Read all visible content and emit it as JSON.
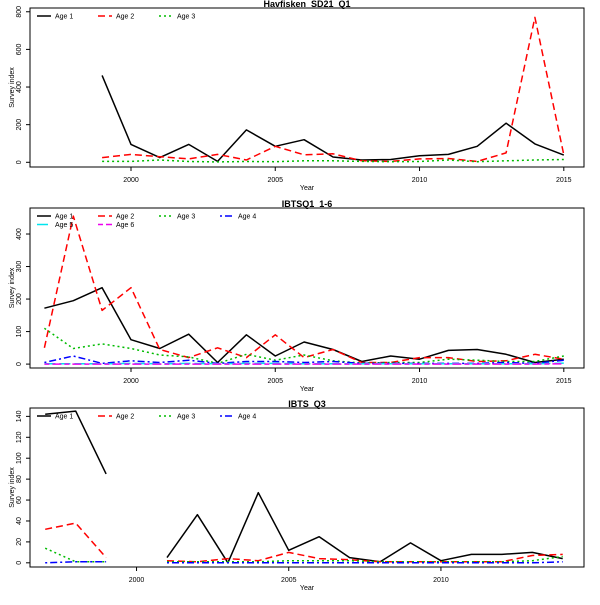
{
  "chart_data": [
    {
      "type": "line",
      "title": "Havfisken_SD21_Q1",
      "xlabel": "Year",
      "ylabel": "Survey index",
      "xlim": [
        1996.5,
        2015.7
      ],
      "ylim": [
        -25,
        820
      ],
      "xticks": [
        2000,
        2005,
        2010,
        2015
      ],
      "yticks": [
        0,
        200,
        400,
        600,
        800
      ],
      "legend": "top-left",
      "grid": false,
      "series": [
        {
          "name": "Age 1",
          "color": "#000000",
          "dash": "solid",
          "x": [
            1999,
            2000,
            2001,
            2002,
            2003,
            2004,
            2005,
            2006,
            2007,
            2008,
            2009,
            2010,
            2011,
            2012,
            2013,
            2014,
            2015
          ],
          "y": [
            462,
            95,
            25,
            95,
            5,
            172,
            85,
            120,
            28,
            12,
            15,
            35,
            42,
            85,
            208,
            98,
            38
          ]
        },
        {
          "name": "Age 2",
          "color": "#ff0000",
          "dash": "dashed",
          "x": [
            1999,
            2000,
            2001,
            2002,
            2003,
            2004,
            2005,
            2006,
            2007,
            2008,
            2009,
            2010,
            2011,
            2012,
            2013,
            2014,
            2015
          ],
          "y": [
            25,
            42,
            30,
            18,
            42,
            12,
            85,
            40,
            45,
            8,
            5,
            18,
            20,
            5,
            50,
            770,
            40
          ]
        },
        {
          "name": "Age 3",
          "color": "#00bb00",
          "dash": "dotted",
          "x": [
            1999,
            2000,
            2001,
            2002,
            2003,
            2004,
            2005,
            2006,
            2007,
            2008,
            2009,
            2010,
            2011,
            2012,
            2013,
            2014,
            2015
          ],
          "y": [
            5,
            5,
            12,
            4,
            2,
            4,
            3,
            8,
            8,
            5,
            3,
            4,
            12,
            3,
            8,
            12,
            15
          ]
        }
      ]
    },
    {
      "type": "line",
      "title": "IBTSQ1_1-6",
      "xlabel": "Year",
      "ylabel": "Survey index",
      "xlim": [
        1996.5,
        2015.7
      ],
      "ylim": [
        -12,
        480
      ],
      "xticks": [
        2000,
        2005,
        2010,
        2015
      ],
      "yticks": [
        0,
        100,
        200,
        300,
        400
      ],
      "legend": "top-left",
      "grid": false,
      "series": [
        {
          "name": "Age 1",
          "color": "#000000",
          "dash": "solid",
          "x": [
            1997,
            1998,
            1999,
            2000,
            2001,
            2002,
            2003,
            2004,
            2005,
            2006,
            2007,
            2008,
            2009,
            2010,
            2011,
            2012,
            2013,
            2014,
            2015
          ],
          "y": [
            172,
            195,
            235,
            75,
            48,
            92,
            5,
            90,
            25,
            68,
            45,
            8,
            25,
            15,
            42,
            45,
            30,
            5,
            15
          ]
        },
        {
          "name": "Age 2",
          "color": "#ff0000",
          "dash": "dashed",
          "x": [
            1997,
            1998,
            1999,
            2000,
            2001,
            2002,
            2003,
            2004,
            2005,
            2006,
            2007,
            2008,
            2009,
            2010,
            2011,
            2012,
            2013,
            2014,
            2015
          ],
          "y": [
            50,
            455,
            165,
            235,
            45,
            20,
            50,
            20,
            90,
            20,
            45,
            5,
            5,
            20,
            20,
            8,
            10,
            30,
            15
          ]
        },
        {
          "name": "Age 3",
          "color": "#00bb00",
          "dash": "dotted",
          "x": [
            1997,
            1998,
            1999,
            2000,
            2001,
            2002,
            2003,
            2004,
            2005,
            2006,
            2007,
            2008,
            2009,
            2010,
            2011,
            2012,
            2013,
            2014,
            2015
          ],
          "y": [
            110,
            48,
            62,
            48,
            28,
            22,
            2,
            30,
            12,
            28,
            10,
            3,
            5,
            5,
            15,
            12,
            8,
            8,
            25
          ]
        },
        {
          "name": "Age 4",
          "color": "#0000ff",
          "dash": "dotdash",
          "x": [
            1997,
            1998,
            1999,
            2000,
            2001,
            2002,
            2003,
            2004,
            2005,
            2006,
            2007,
            2008,
            2009,
            2010,
            2011,
            2012,
            2013,
            2014,
            2015
          ],
          "y": [
            5,
            25,
            2,
            10,
            5,
            12,
            2,
            8,
            8,
            5,
            8,
            2,
            2,
            2,
            2,
            2,
            5,
            2,
            12
          ]
        },
        {
          "name": "Age 5",
          "color": "#00e5ee",
          "dash": "longdash",
          "x": [
            1997,
            1998,
            1999,
            2000,
            2001,
            2002,
            2003,
            2004,
            2005,
            2006,
            2007,
            2008,
            2009,
            2010,
            2011,
            2012,
            2013,
            2014,
            2015
          ],
          "y": [
            1,
            1,
            1,
            2,
            1,
            2,
            1,
            2,
            2,
            1,
            1,
            1,
            1,
            1,
            1,
            1,
            1,
            1,
            3
          ]
        },
        {
          "name": "Age 6",
          "color": "#ee00ee",
          "dash": "twodash",
          "x": [
            1997,
            1998,
            1999,
            2000,
            2001,
            2002,
            2003,
            2004,
            2005,
            2006,
            2007,
            2008,
            2009,
            2010,
            2011,
            2012,
            2013,
            2014,
            2015
          ],
          "y": [
            0,
            0,
            0,
            0,
            0,
            0,
            0,
            0,
            0,
            0,
            0,
            0,
            0,
            0,
            0,
            0,
            0,
            0,
            1
          ]
        }
      ]
    },
    {
      "type": "line",
      "title": "IBTS_Q3",
      "xlabel": "Year",
      "ylabel": "Survey index",
      "xlim": [
        1996.5,
        2014.7
      ],
      "ylim": [
        -4,
        148
      ],
      "xticks": [
        2000,
        2005,
        2010
      ],
      "yticks": [
        0,
        20,
        40,
        60,
        80,
        100,
        120,
        140
      ],
      "legend": "top-left",
      "grid": false,
      "series": [
        {
          "name": "Age 1",
          "color": "#000000",
          "dash": "solid",
          "x": [
            1997,
            1998,
            1999,
            null,
            2001,
            2002,
            2003,
            2004,
            2005,
            2006,
            2007,
            2008,
            2009,
            2010,
            2011,
            2012,
            2013,
            2014
          ],
          "y": [
            142,
            145,
            85,
            null,
            5,
            46,
            0,
            67,
            12,
            25,
            5,
            1,
            19,
            2,
            8,
            8,
            10,
            4
          ]
        },
        {
          "name": "Age 2",
          "color": "#ff0000",
          "dash": "dashed",
          "x": [
            1997,
            1998,
            1999,
            null,
            2001,
            2002,
            2003,
            2004,
            2005,
            2006,
            2007,
            2008,
            2009,
            2010,
            2011,
            2012,
            2013,
            2014
          ],
          "y": [
            32,
            38,
            5,
            null,
            2,
            1,
            4,
            2,
            10,
            4,
            3,
            1,
            1,
            1,
            1,
            1,
            7,
            8
          ]
        },
        {
          "name": "Age 3",
          "color": "#00bb00",
          "dash": "dotted",
          "x": [
            1997,
            1998,
            1999,
            null,
            2001,
            2002,
            2003,
            2004,
            2005,
            2006,
            2007,
            2008,
            2009,
            2010,
            2011,
            2012,
            2013,
            2014
          ],
          "y": [
            14,
            1,
            1,
            null,
            1,
            1,
            1,
            1,
            2,
            2,
            2,
            1,
            1,
            1,
            1,
            1,
            2,
            6
          ]
        },
        {
          "name": "Age 4",
          "color": "#0000ff",
          "dash": "dotdash",
          "x": [
            1997,
            1998,
            1999,
            null,
            2001,
            2002,
            2003,
            2004,
            2005,
            2006,
            2007,
            2008,
            2009,
            2010,
            2011,
            2012,
            2013,
            2014
          ],
          "y": [
            0,
            1,
            1,
            null,
            0,
            0,
            0,
            0,
            0,
            0,
            0,
            0,
            0,
            0,
            0,
            0,
            0,
            1
          ]
        }
      ]
    }
  ]
}
